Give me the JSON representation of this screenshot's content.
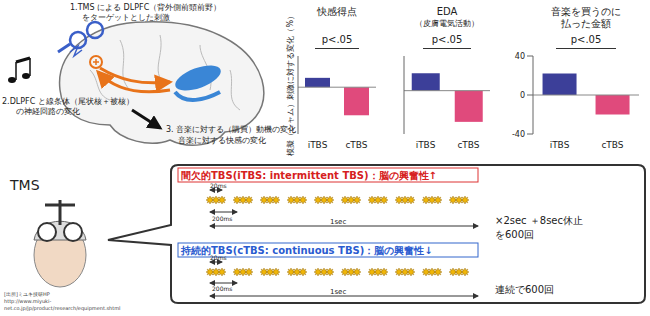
{
  "brain_diagram": {
    "step1": [
      "1.TMS による DLPFC（背外側前頭前野）",
      "をターゲットとした刺激"
    ],
    "step2": [
      "2.DLPFC と線条体（尾状核＋被核）",
      "の神経回路の変化"
    ],
    "step3": [
      "3. 音楽に対する（購買）動機の変化",
      "音楽に対する快感の変化"
    ]
  },
  "chart_data": [
    {
      "type": "bar",
      "title": "快感得点",
      "annotation": "p<.05",
      "ylabel": "模擬（シャム）刺激に対する変化（%）",
      "categories": [
        "iTBS",
        "cTBS"
      ],
      "values": [
        3,
        -9
      ],
      "colors": [
        "#3c3f99",
        "#e04a7c"
      ],
      "ylim": [
        -15,
        10
      ],
      "tick_labels": "x"
    },
    {
      "type": "bar",
      "title": "EDA",
      "subtitle": "（皮膚電気活動）",
      "annotation": "p<.05",
      "categories": [
        "iTBS",
        "cTBS"
      ],
      "values": [
        10,
        -18
      ],
      "colors": [
        "#3c3f99",
        "#e04a7c"
      ],
      "ylim": [
        -25,
        20
      ],
      "tick_labels": "x"
    },
    {
      "type": "bar",
      "title": "音楽を買うのに\n払った金額",
      "annotation": "p<.05",
      "categories": [
        "iTBS",
        "cTBS"
      ],
      "values": [
        22,
        -20
      ],
      "colors": [
        "#3c3f99",
        "#e04a7c"
      ],
      "ylim": [
        -40,
        40
      ],
      "yticks": [
        -40,
        0,
        40
      ]
    }
  ],
  "tms": {
    "label": "TMS",
    "source": [
      "[出所]ミユキ技研HP",
      "http://www.miyuki-",
      "net.co.jp/jp/product/research/equipment.shtml"
    ],
    "itbs": {
      "title": "間欠的TBS(iTBS: intermittent TBS)：脳の興奮性↑",
      "pulse_label": "20ms",
      "burst_label": "200ms",
      "train_label": "1sec",
      "repeat": [
        "×2sec ＋8sec休止",
        "を600回"
      ]
    },
    "ctbs": {
      "title": "持続的TBS(cTBS: continuous TBS)：脳の興奮性↓",
      "pulse_label": "20ms",
      "burst_label": "200ms",
      "train_label": "1sec",
      "repeat": [
        "連続で600回"
      ]
    }
  }
}
